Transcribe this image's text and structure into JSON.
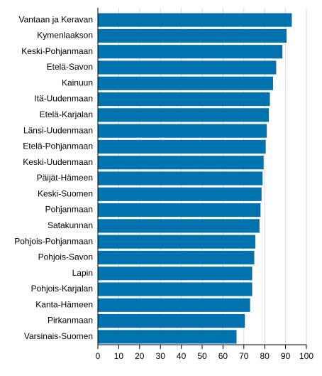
{
  "chart_data": {
    "type": "bar",
    "orientation": "horizontal",
    "categories": [
      "Vantaan ja Keravan",
      "Kymenlaakson",
      "Keski-Pohjanmaan",
      "Etelä-Savon",
      "Kainuun",
      "Itä-Uudenmaan",
      "Etelä-Karjalan",
      "Länsi-Uudenmaan",
      "Etelä-Pohjanmaan",
      "Keski-Uudenmaan",
      "Päijät-Hämeen",
      "Keski-Suomen",
      "Pohjanmaan",
      "Satakunnan",
      "Pohjois-Pohjanmaan",
      "Pohjois-Savon",
      "Lapin",
      "Pohjois-Karjalan",
      "Kanta-Hämeen",
      "Pirkanmaan",
      "Varsinais-Suomen"
    ],
    "values": [
      93,
      90.5,
      88.5,
      85.5,
      84,
      82.5,
      82,
      81,
      80.5,
      79.5,
      79,
      78.5,
      78,
      77.5,
      75.5,
      75,
      74,
      74,
      73,
      70.5,
      66.5
    ],
    "xlim": [
      0,
      100
    ],
    "xticks": [
      0,
      10,
      20,
      30,
      40,
      50,
      60,
      70,
      80,
      90,
      100
    ],
    "grid": true,
    "bar_color": "#0072ae"
  }
}
